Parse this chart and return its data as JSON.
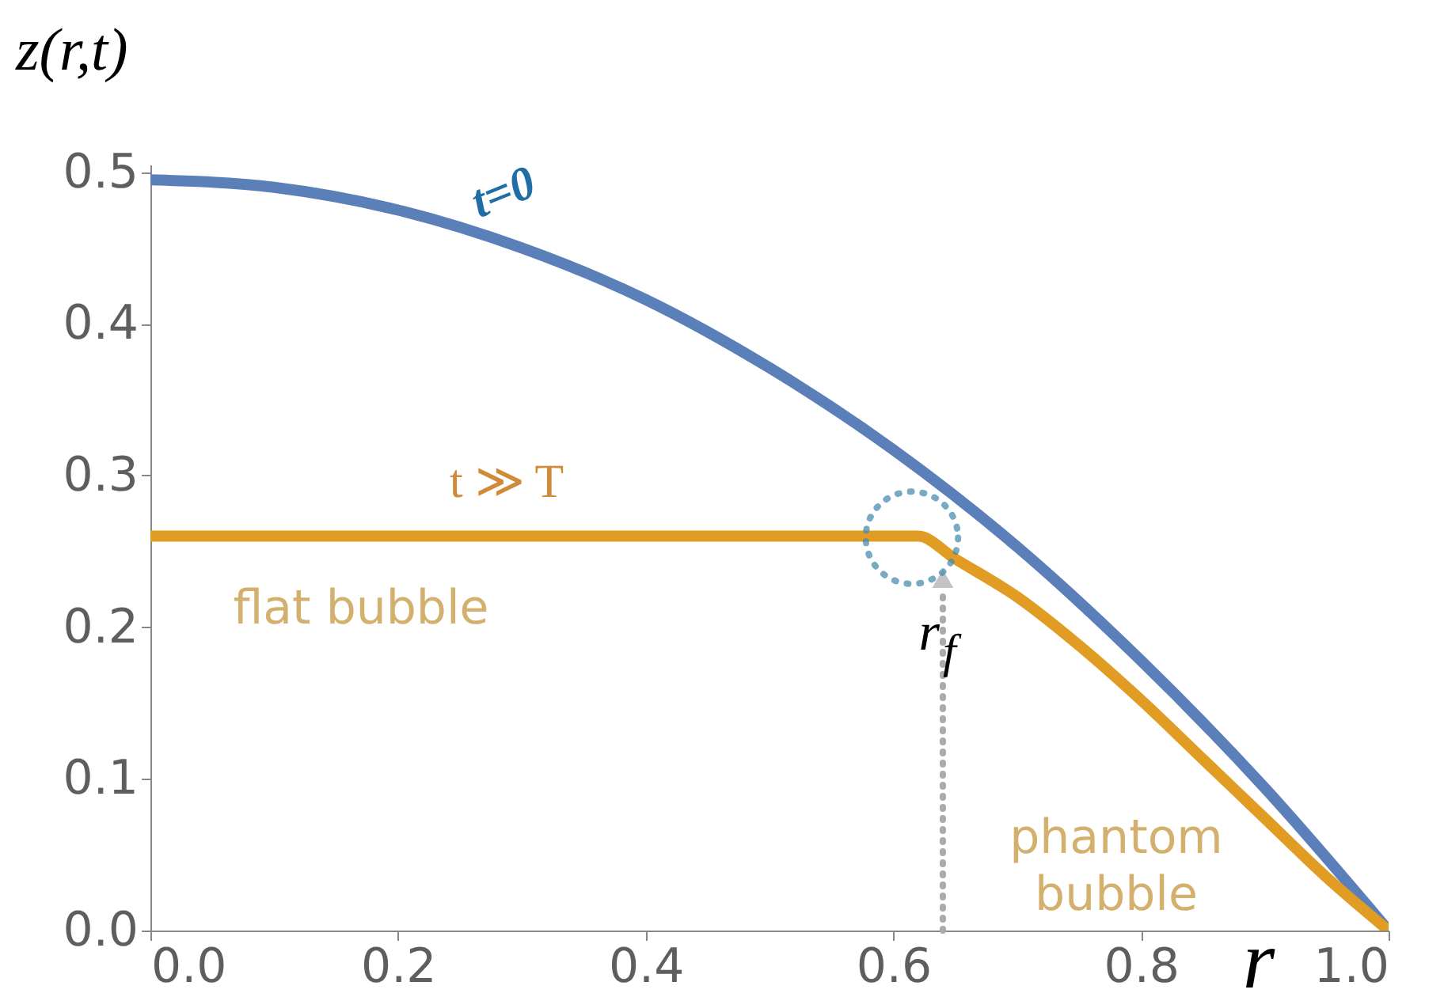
{
  "chart_data": {
    "type": "line",
    "xlabel": "r",
    "ylabel": "z(r,t)",
    "xlim": [
      0,
      1.0
    ],
    "ylim": [
      0,
      0.505
    ],
    "xticks": [
      {
        "value": 0,
        "label": "0.0"
      },
      0.2,
      0.4,
      0.6,
      0.8,
      {
        "value": 1,
        "label": "1.0"
      }
    ],
    "yticks": [
      {
        "value": 0,
        "label": "0.0"
      },
      0.1,
      0.2,
      0.3,
      0.4,
      0.5
    ],
    "series": [
      {
        "color": "#5b7fb9",
        "x": [
          0,
          0.1,
          0.2,
          0.3,
          0.4,
          0.5,
          0.6,
          0.7,
          0.8,
          0.9,
          1.0
        ],
        "values": [
          0.495,
          0.49,
          0.475,
          0.45,
          0.416,
          0.371,
          0.317,
          0.253,
          0.178,
          0.094,
          0.0
        ]
      },
      {
        "color": "#e19c24",
        "x": [
          0,
          0.62,
          0.65,
          0.7,
          0.75,
          0.8,
          0.85,
          0.9,
          0.95,
          1.0
        ],
        "values": [
          0.26,
          0.26,
          0.245,
          0.22,
          0.188,
          0.152,
          0.113,
          0.074,
          0.035,
          0.0
        ]
      }
    ],
    "annotations": [
      "t=0",
      "t ≫ T",
      "flat bubble",
      {
        "text": "r$_{f}$",
        "x": 0.64,
        "y": 0.232
      },
      "phantom\nbubble"
    ],
    "grid": false
  }
}
